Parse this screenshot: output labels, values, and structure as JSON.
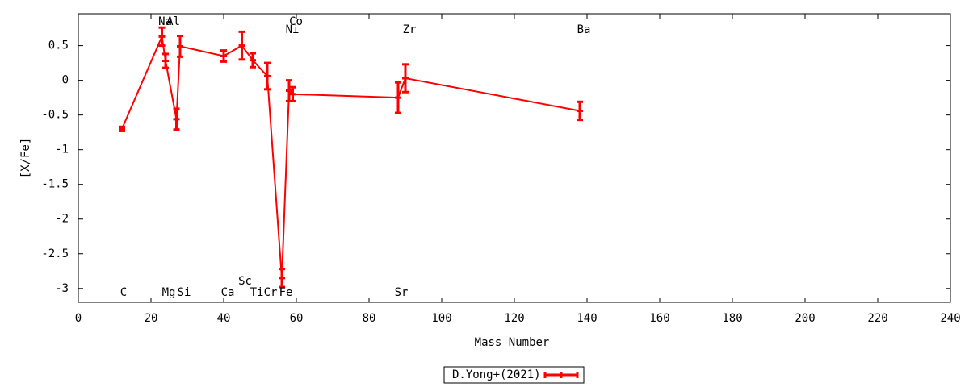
{
  "chart_data": {
    "type": "errorbar_line",
    "xlabel": "Mass Number",
    "ylabel": "[X/Fe]",
    "xlim": [
      0,
      240
    ],
    "ylim": [
      -3.2,
      0.96
    ],
    "xticks": [
      0,
      20,
      40,
      60,
      80,
      100,
      120,
      140,
      160,
      180,
      200,
      220,
      240
    ],
    "yticks": [
      0.5,
      0,
      -0.5,
      -1,
      -1.5,
      -2,
      -2.5,
      -3
    ],
    "point_labels": [
      "C",
      "Na",
      "Mg",
      "Al",
      "Si",
      "Ca",
      "Sc",
      "Ti",
      "Cr",
      "Fe",
      "Ni",
      "Co",
      "Sr",
      "Zr",
      "Ba"
    ],
    "series": [
      {
        "name": "D.Yong+(2021)",
        "color": "#ff0000",
        "x": [
          12,
          23,
          24,
          27,
          28,
          40,
          45,
          48,
          52,
          56,
          58,
          59,
          88,
          90,
          138
        ],
        "values": [
          -0.7,
          0.63,
          0.28,
          -0.56,
          0.49,
          0.35,
          0.5,
          0.29,
          0.06,
          -2.85,
          -0.15,
          -0.2,
          -0.25,
          0.03,
          -0.44
        ],
        "errors": [
          0.03,
          0.13,
          0.1,
          0.15,
          0.15,
          0.08,
          0.2,
          0.1,
          0.19,
          0.13,
          0.15,
          0.1,
          0.22,
          0.2,
          0.13
        ]
      }
    ],
    "legend": "bottom"
  }
}
